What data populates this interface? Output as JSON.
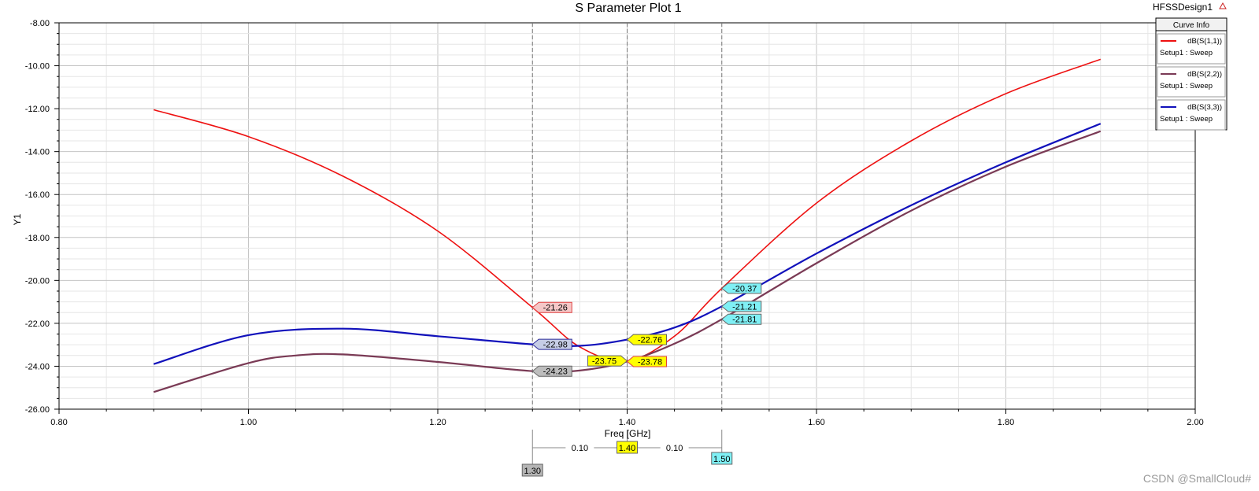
{
  "plot": {
    "title": "S Parameter Plot 1",
    "design_label": "HFSSDesign1",
    "watermark": "CSDN @SmallCloud#"
  },
  "legend": {
    "header": "Curve Info",
    "placement": "top-right",
    "entries": [
      {
        "name": "dB(S(1,1))",
        "subtitle": "Setup1 : Sweep",
        "color": "#ee1111"
      },
      {
        "name": "dB(S(2,2))",
        "subtitle": "Setup1 : Sweep",
        "color": "#7a3a55"
      },
      {
        "name": "dB(S(3,3))",
        "subtitle": "Setup1 : Sweep",
        "color": "#1111bb"
      }
    ]
  },
  "chart_data": {
    "type": "line",
    "xlabel": "Freq [GHz]",
    "ylabel": "Y1",
    "xlim": [
      0.8,
      2.0
    ],
    "ylim": [
      -26.0,
      -8.0
    ],
    "grid": true,
    "x_ticks": [
      "0.80",
      "1.00",
      "1.20",
      "1.40",
      "1.60",
      "1.80",
      "2.00"
    ],
    "y_ticks": [
      "-8.00",
      "-10.00",
      "-12.00",
      "-14.00",
      "-16.00",
      "-18.00",
      "-20.00",
      "-22.00",
      "-24.00",
      "-26.00"
    ],
    "series": [
      {
        "name": "dB(S(1,1))",
        "color": "#ee1111",
        "x": [
          0.9,
          1.0,
          1.1,
          1.2,
          1.3,
          1.35,
          1.4,
          1.45,
          1.5,
          1.6,
          1.7,
          1.8,
          1.9
        ],
        "y": [
          -12.05,
          -13.3,
          -15.15,
          -17.7,
          -21.26,
          -23.1,
          -23.75,
          -22.6,
          -20.37,
          -16.4,
          -13.5,
          -11.3,
          -9.7
        ]
      },
      {
        "name": "dB(S(2,2))",
        "color": "#7a3a55",
        "x": [
          0.9,
          1.0,
          1.05,
          1.1,
          1.2,
          1.3,
          1.35,
          1.4,
          1.45,
          1.5,
          1.6,
          1.7,
          1.8,
          1.9
        ],
        "y": [
          -25.2,
          -23.85,
          -23.5,
          -23.45,
          -23.8,
          -24.23,
          -24.2,
          -23.78,
          -22.95,
          -21.81,
          -19.2,
          -16.75,
          -14.7,
          -13.05
        ]
      },
      {
        "name": "dB(S(3,3))",
        "color": "#1111bb",
        "x": [
          0.9,
          1.0,
          1.1,
          1.2,
          1.3,
          1.35,
          1.4,
          1.45,
          1.5,
          1.6,
          1.7,
          1.8,
          1.9
        ],
        "y": [
          -23.9,
          -22.55,
          -22.25,
          -22.6,
          -22.98,
          -23.05,
          -22.76,
          -22.2,
          -21.21,
          -18.75,
          -16.5,
          -14.5,
          -12.7
        ]
      }
    ],
    "markers": [
      {
        "x": 1.3,
        "label": "1.30",
        "color": "#b5b5b5"
      },
      {
        "x": 1.4,
        "label": "1.40",
        "color": "#ffff00"
      },
      {
        "x": 1.5,
        "label": "1.50",
        "color": "#7ff0f5"
      }
    ],
    "delta_labels": [
      {
        "from": 1.3,
        "to": 1.4,
        "label": "0.10"
      },
      {
        "from": 1.4,
        "to": 1.5,
        "label": "0.10"
      }
    ],
    "annotations": [
      {
        "x": 1.3,
        "y": -21.26,
        "label": "-21.26",
        "fill": "#f5c7c7",
        "stroke": "#e04040",
        "side": "right"
      },
      {
        "x": 1.3,
        "y": -22.98,
        "label": "-22.98",
        "fill": "#c6cde6",
        "stroke": "#2b2b99",
        "side": "right"
      },
      {
        "x": 1.3,
        "y": -24.23,
        "label": "-24.23",
        "fill": "#bdbdbd",
        "stroke": "#666666",
        "side": "right"
      },
      {
        "x": 1.4,
        "y": -22.76,
        "label": "-22.76",
        "fill": "#ffff00",
        "stroke": "#666666",
        "side": "right"
      },
      {
        "x": 1.4,
        "y": -23.75,
        "label": "-23.75",
        "fill": "#ffff00",
        "stroke": "#666666",
        "side": "left"
      },
      {
        "x": 1.4,
        "y": -23.78,
        "label": "-23.78",
        "fill": "#ffff00",
        "stroke": "#e04040",
        "side": "right"
      },
      {
        "x": 1.5,
        "y": -20.37,
        "label": "-20.37",
        "fill": "#7ff0f5",
        "stroke": "#666666",
        "side": "right"
      },
      {
        "x": 1.5,
        "y": -21.21,
        "label": "-21.21",
        "fill": "#7ff0f5",
        "stroke": "#666666",
        "side": "right"
      },
      {
        "x": 1.5,
        "y": -21.81,
        "label": "-21.81",
        "fill": "#7ff0f5",
        "stroke": "#666666",
        "side": "right"
      }
    ]
  }
}
